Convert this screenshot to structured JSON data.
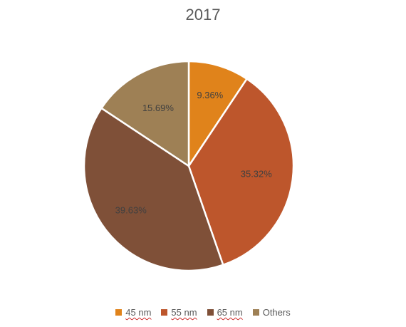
{
  "chart_data": {
    "type": "pie",
    "title": "2017",
    "categories": [
      "45 nm",
      "55 nm",
      "65 nm",
      "Others"
    ],
    "values": [
      9.36,
      35.32,
      39.63,
      15.69
    ],
    "labels": [
      "9.36%",
      "35.32%",
      "39.63%",
      "15.69%"
    ],
    "colors": [
      "#E0831B",
      "#BD562C",
      "#7F5038",
      "#9E8055"
    ],
    "legend_position": "bottom"
  }
}
